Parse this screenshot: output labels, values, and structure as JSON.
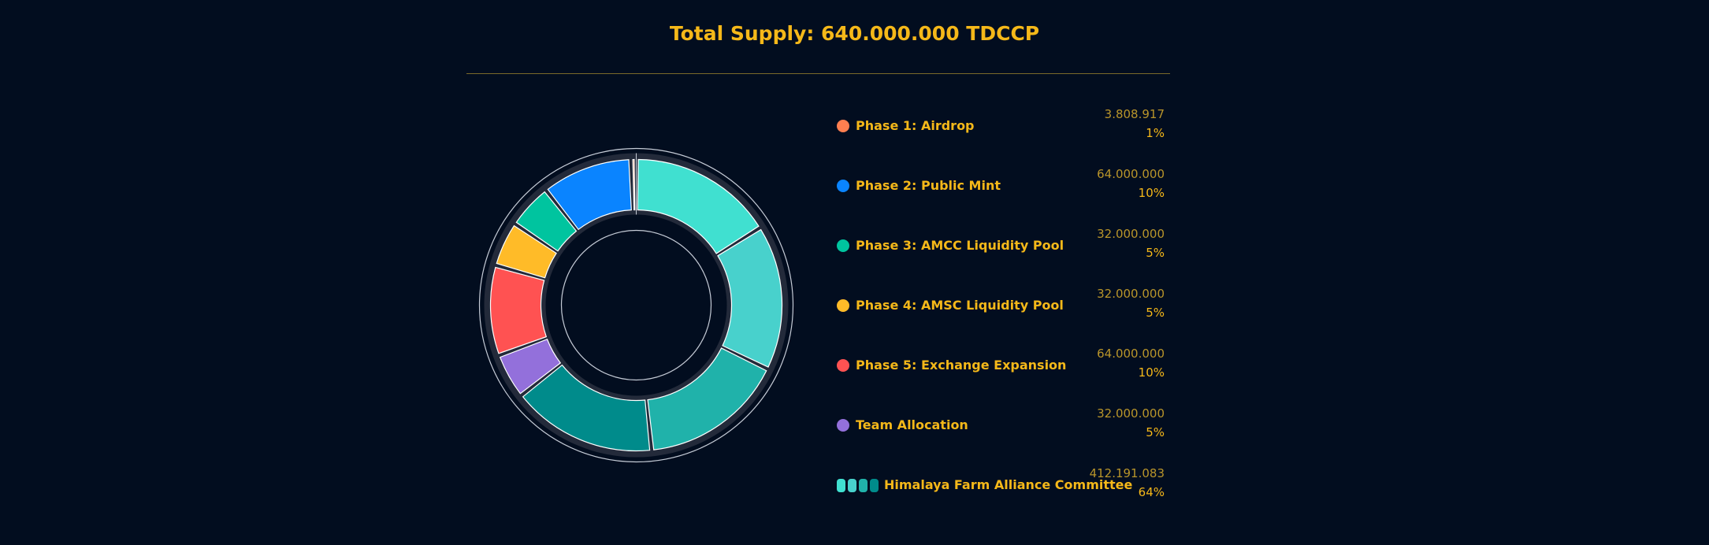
{
  "header": {
    "title": "Total Supply: 640.000.000 TDCCP"
  },
  "chart_data": {
    "type": "pie",
    "title": "Total Supply: 640.000.000 TDCCP",
    "legend_position": "right",
    "series": [
      {
        "name": "Phase 1: Airdrop",
        "value": 3808917,
        "amount_label": "3.808.917",
        "percent_label": "1%",
        "color": "#ff7f50"
      },
      {
        "name": "Phase 2: Public Mint",
        "value": 64000000,
        "amount_label": "64.000.000",
        "percent_label": "10%",
        "color": "#0a84ff"
      },
      {
        "name": "Phase 3: AMCC Liquidity Pool",
        "value": 32000000,
        "amount_label": "32.000.000",
        "percent_label": "5%",
        "color": "#00c49f"
      },
      {
        "name": "Phase 4: AMSC Liquidity Pool",
        "value": 32000000,
        "amount_label": "32.000.000",
        "percent_label": "5%",
        "color": "#ffbb28"
      },
      {
        "name": "Phase 5: Exchange Expansion",
        "value": 64000000,
        "amount_label": "64.000.000",
        "percent_label": "10%",
        "color": "#ff5252"
      },
      {
        "name": "Team Allocation",
        "value": 32000000,
        "amount_label": "32.000.000",
        "percent_label": "5%",
        "color": "#9370db"
      },
      {
        "name": "Himalaya Farm Alliance Committee",
        "value": 412191083,
        "amount_label": "412.191.083",
        "percent_label": "64%",
        "color": "#40e0d0",
        "sub_colors": [
          "#40e0d0",
          "#48d1cc",
          "#20b2aa",
          "#008b8b"
        ]
      }
    ]
  }
}
